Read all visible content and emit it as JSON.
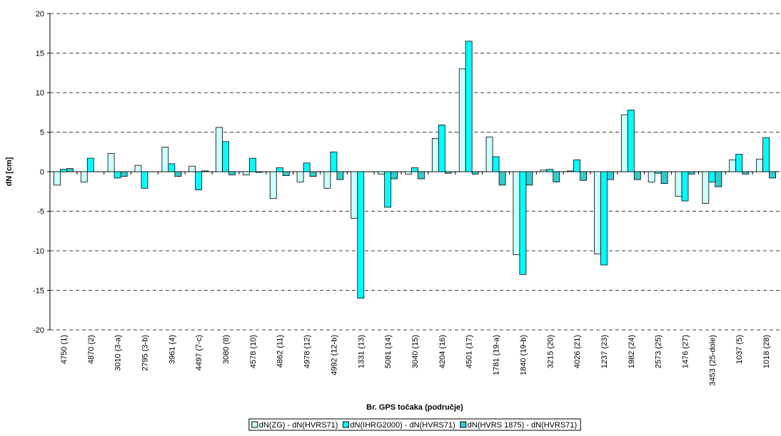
{
  "chart_data": {
    "type": "bar",
    "y_label": "dN [cm]",
    "x_label": "Br. GPS točaka (područje)",
    "categories": [
      "4750 (1)",
      "4870 (2)",
      "3010 (3-a)",
      "2795 (3-b)",
      "3961 (4)",
      "4497 (7-c)",
      "3080 (8)",
      "4578 (10)",
      "4862 (11)",
      "4978 (12)",
      "4992 (12-b)",
      "1331 (13)",
      "5081 (14)",
      "3040 (15)",
      "4204 (16)",
      "4501 (17)",
      "1781 (19-a)",
      "1840 (19-b)",
      "3215 (20)",
      "4026 (21)",
      "1237 (23)",
      "1982 (24)",
      "2573 (25)",
      "1476 (27)",
      "3453 (25-dole)",
      "1037 (5)",
      "1018 (28)"
    ],
    "series": [
      {
        "name": "dN(ZG) - dN(HVRS71)",
        "color": "#ccffff",
        "values": [
          -1.7,
          -1.3,
          2.3,
          0.8,
          3.1,
          0.7,
          5.6,
          -0.4,
          -3.4,
          -1.3,
          -2.1,
          -5.9,
          -0.3,
          -0.3,
          4.2,
          13.0,
          4.4,
          -10.5,
          0.2,
          0.1,
          -10.4,
          7.2,
          -1.3,
          -3.1,
          -4.0,
          1.5,
          1.6
        ]
      },
      {
        "name": "dN(IHRG2000) - dN(HVRS71)",
        "color": "#00ffff",
        "values": [
          0.3,
          1.7,
          -0.8,
          -2.1,
          1.0,
          -2.3,
          3.8,
          1.7,
          0.5,
          1.1,
          2.5,
          -16.0,
          -4.5,
          0.5,
          5.9,
          16.5,
          1.9,
          -13.0,
          0.3,
          1.5,
          -11.8,
          7.8,
          -0.2,
          -3.7,
          -1.3,
          2.2,
          4.3
        ]
      },
      {
        "name": "dN(HVRS 1875) - dN(HVRS71)",
        "color": "#33cccc",
        "values": [
          0.4,
          0.0,
          -0.6,
          0.0,
          -0.6,
          0.1,
          -0.4,
          -0.1,
          -0.5,
          -0.6,
          -1.0,
          0.0,
          -0.9,
          -0.9,
          -0.2,
          -0.3,
          -1.7,
          -1.7,
          -1.3,
          -1.1,
          -1.0,
          -1.0,
          -1.5,
          -0.3,
          -1.9,
          -0.3,
          -0.8
        ]
      }
    ],
    "ylim": [
      -20,
      20
    ],
    "yticks": [
      -20,
      -15,
      -10,
      -5,
      0,
      5,
      10,
      15,
      20
    ],
    "grid": true,
    "legend": "bottom"
  }
}
